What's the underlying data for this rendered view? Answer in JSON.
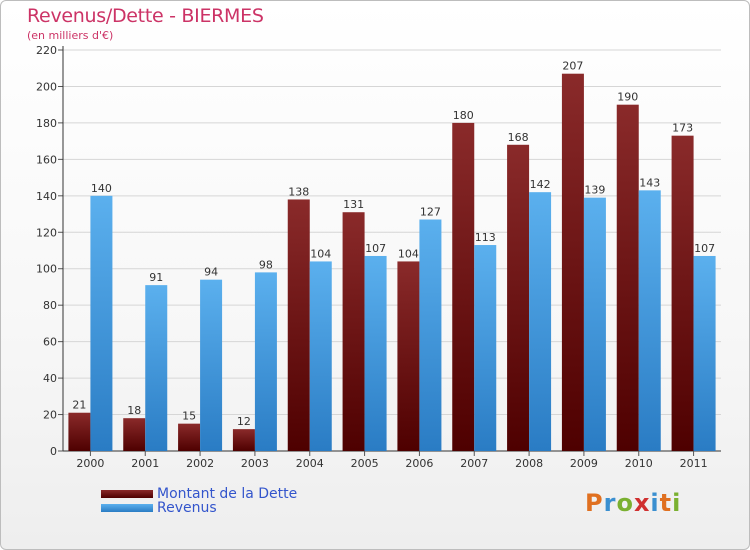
{
  "header": {
    "title": "Revenus/Dette - BIERMES",
    "subtitle": "(en milliers d'€)"
  },
  "legend": {
    "items": [
      {
        "label": "Montant de la Dette",
        "color": "#7a1010"
      },
      {
        "label": "Revenus",
        "color": "#3a96dd"
      }
    ]
  },
  "logo": {
    "letters": [
      "P",
      "r",
      "o",
      "x",
      "i",
      "t",
      "i"
    ],
    "colors": [
      "#e07020",
      "#3a8fd0",
      "#7ab030",
      "#d03030",
      "#3a8fd0",
      "#e07020",
      "#7ab030"
    ]
  },
  "chart_data": {
    "type": "bar",
    "categories": [
      "2000",
      "2001",
      "2002",
      "2003",
      "2004",
      "2005",
      "2006",
      "2007",
      "2008",
      "2009",
      "2010",
      "2011"
    ],
    "series": [
      {
        "name": "Montant de la Dette",
        "values": [
          21,
          18,
          15,
          12,
          138,
          131,
          104,
          180,
          168,
          207,
          190,
          173
        ],
        "color": "#7a1010"
      },
      {
        "name": "Revenus",
        "values": [
          140,
          91,
          94,
          98,
          104,
          107,
          127,
          113,
          142,
          139,
          143,
          107
        ],
        "color": "#3a96dd"
      }
    ],
    "yticks": [
      0,
      20,
      40,
      60,
      80,
      100,
      120,
      140,
      160,
      180,
      200,
      220
    ],
    "ylim": [
      0,
      220
    ],
    "grid": true
  }
}
